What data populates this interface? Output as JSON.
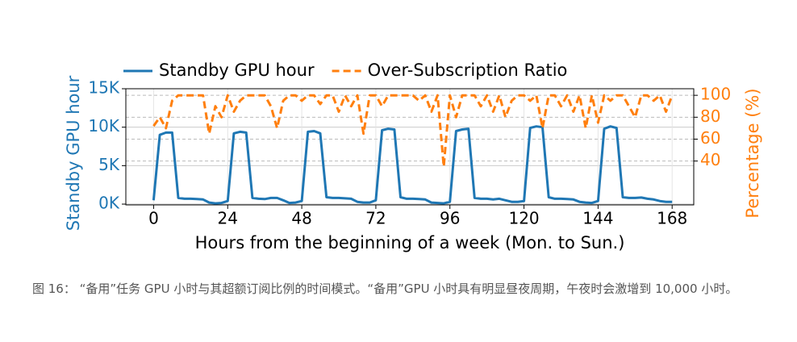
{
  "chart_data": {
    "type": "line",
    "legend": "upper center",
    "grid": true,
    "xlabel": "Hours from the beginning of a week (Mon. to Sun.)",
    "ylabel": "Standby GPU hour",
    "y2label": "Percentage (%)",
    "x": [
      0,
      2,
      4,
      6,
      8,
      10,
      12,
      14,
      16,
      18,
      20,
      22,
      24,
      26,
      28,
      30,
      32,
      34,
      36,
      38,
      40,
      42,
      44,
      46,
      48,
      50,
      52,
      54,
      56,
      58,
      60,
      62,
      64,
      66,
      68,
      70,
      72,
      74,
      76,
      78,
      80,
      82,
      84,
      86,
      88,
      90,
      92,
      94,
      96,
      98,
      100,
      102,
      104,
      106,
      108,
      110,
      112,
      114,
      116,
      118,
      120,
      122,
      124,
      126,
      128,
      130,
      132,
      134,
      136,
      138,
      140,
      142,
      144,
      146,
      148,
      150,
      152,
      154,
      156,
      158,
      160,
      162,
      164,
      166,
      168
    ],
    "xlim": [
      -9,
      175
    ],
    "xticks": [
      0,
      24,
      48,
      72,
      96,
      120,
      144,
      168
    ],
    "ylim": [
      -100,
      15000
    ],
    "yticks": [
      {
        "value": 0,
        "label": "0K"
      },
      {
        "value": 5000,
        "label": "5K"
      },
      {
        "value": 10000,
        "label": "10K"
      },
      {
        "value": 15000,
        "label": "15K"
      }
    ],
    "y2lim": [
      0,
      106
    ],
    "y2ticks": [
      40,
      60,
      80,
      100
    ],
    "series": [
      {
        "name": "Standby GPU hour",
        "color": "#1f77b4",
        "style": "solid",
        "values": [
          500,
          9000,
          9300,
          9300,
          800,
          700,
          700,
          650,
          600,
          200,
          100,
          150,
          400,
          9200,
          9400,
          9300,
          800,
          700,
          650,
          800,
          800,
          500,
          150,
          200,
          400,
          9400,
          9500,
          9200,
          900,
          800,
          800,
          750,
          700,
          300,
          200,
          200,
          500,
          9600,
          9800,
          9700,
          900,
          700,
          700,
          650,
          600,
          200,
          150,
          100,
          300,
          9500,
          9700,
          9800,
          800,
          700,
          700,
          600,
          700,
          500,
          300,
          300,
          400,
          9900,
          10100,
          10000,
          900,
          700,
          700,
          650,
          600,
          300,
          200,
          150,
          400,
          9800,
          10100,
          9900,
          900,
          800,
          800,
          850,
          700,
          600,
          400,
          300,
          300
        ]
      },
      {
        "name": "Over-Subscription Ratio",
        "color": "#ff7f0e",
        "style": "dashed",
        "axis": "y2",
        "values": [
          72,
          80,
          70,
          95,
          100,
          100,
          100,
          100,
          100,
          65,
          90,
          80,
          100,
          85,
          95,
          100,
          100,
          100,
          100,
          90,
          70,
          95,
          100,
          100,
          95,
          100,
          100,
          92,
          100,
          100,
          85,
          100,
          90,
          100,
          65,
          100,
          100,
          90,
          100,
          100,
          100,
          100,
          100,
          95,
          100,
          85,
          100,
          35,
          100,
          80,
          100,
          100,
          100,
          90,
          100,
          85,
          100,
          80,
          95,
          100,
          100,
          95,
          100,
          70,
          100,
          100,
          90,
          100,
          85,
          100,
          70,
          100,
          75,
          100,
          95,
          100,
          100,
          90,
          80,
          100,
          100,
          95,
          100,
          85,
          100
        ]
      }
    ]
  },
  "caption": "图 16： “备用”任务 GPU 小时与其超额订阅比例的时间模式。“备用”GPU 小时具有明显昼夜周期，午夜时会激增到 10,000 小时。"
}
